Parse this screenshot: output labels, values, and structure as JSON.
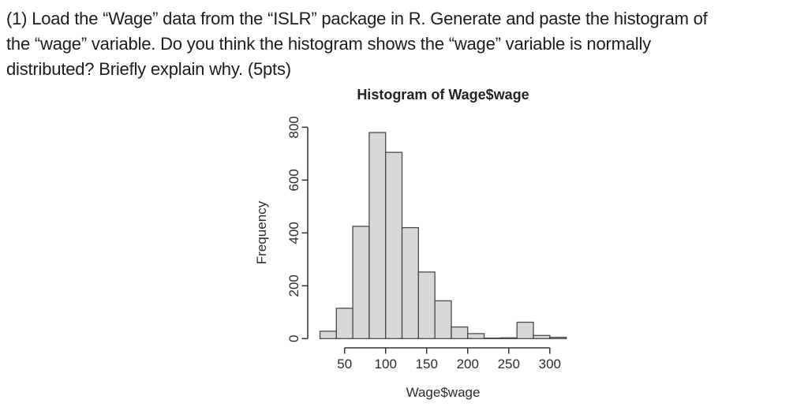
{
  "question": {
    "lines": [
      "(1) Load the “Wage” data from the “ISLR” package in R. Generate and paste the histogram of",
      "the “wage” variable. Do you think the histogram shows the “wage” variable is normally",
      "distributed? Briefly explain why. (5pts)"
    ]
  },
  "chart_data": {
    "type": "bar",
    "subtype": "histogram",
    "title": "Histogram of Wage$wage",
    "xlabel": "Wage$wage",
    "ylabel": "Frequency",
    "bin_edges": [
      20,
      40,
      60,
      80,
      100,
      120,
      140,
      160,
      180,
      200,
      220,
      240,
      260,
      280,
      300,
      320
    ],
    "counts": [
      28,
      115,
      425,
      780,
      705,
      420,
      252,
      143,
      44,
      19,
      2,
      3,
      62,
      12,
      5
    ],
    "x_ticks": [
      50,
      100,
      150,
      200,
      250,
      300
    ],
    "y_ticks": [
      0,
      200,
      400,
      600,
      800
    ],
    "xlim": [
      20,
      320
    ],
    "ylim": [
      0,
      800
    ],
    "grid": false,
    "legend": "none",
    "colors": {
      "bar_fill": "#d8d8d8",
      "bar_stroke": "#4a4a4a",
      "axis": "#333333",
      "text": "#2b2b2b"
    }
  }
}
